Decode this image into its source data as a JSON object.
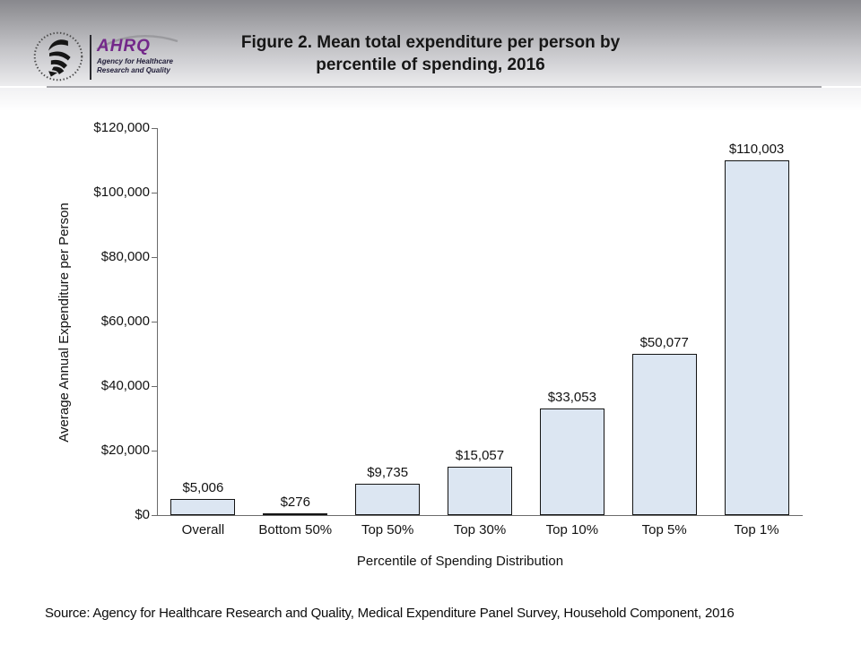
{
  "header": {
    "logo": {
      "acronym": "AHRQ",
      "tagline_line1": "Agency for Healthcare",
      "tagline_line2": "Research and Quality",
      "ahrq_purple": "#73288a"
    },
    "title_line1": "Figure 2. Mean total expenditure per person by",
    "title_line2": "percentile of spending, 2016"
  },
  "chart_data": {
    "type": "bar",
    "title": "Figure 2. Mean total expenditure per person by percentile of spending, 2016",
    "categories": [
      "Overall",
      "Bottom 50%",
      "Top 50%",
      "Top 30%",
      "Top 10%",
      "Top 5%",
      "Top 1%"
    ],
    "values": [
      5006,
      276,
      9735,
      15057,
      33053,
      50077,
      110003
    ],
    "data_labels": [
      "$5,006",
      "$276",
      "$9,735",
      "$15,057",
      "$33,053",
      "$50,077",
      "$110,003"
    ],
    "xlabel": "Percentile of Spending Distribution",
    "ylabel": "Average Annual Expenditure per Person",
    "ylim": [
      0,
      120000
    ],
    "ytick_step": 20000,
    "ytick_labels": [
      "$0",
      "$20,000",
      "$40,000",
      "$60,000",
      "$80,000",
      "$100,000",
      "$120,000"
    ],
    "grid": false,
    "legend_position": "none",
    "bar_fill": "#dce6f2",
    "bar_border": "#141414"
  },
  "footer": {
    "source": "Source: Agency for Healthcare Research and Quality, Medical Expenditure Panel Survey, Household Component, 2016"
  }
}
